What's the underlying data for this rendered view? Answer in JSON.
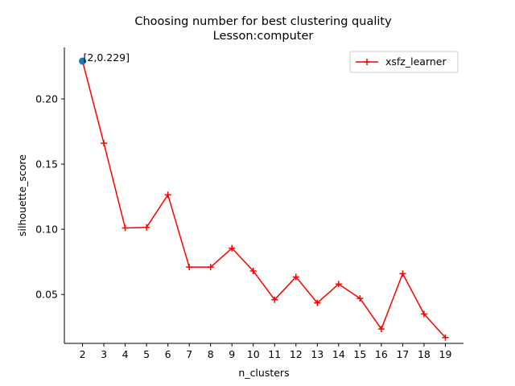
{
  "chart_data": {
    "type": "line",
    "title": "Choosing number for best clustering quality",
    "subtitle": "Lesson:computer",
    "xlabel": "n_clusters",
    "ylabel": "silhouette_score",
    "x": [
      2,
      3,
      4,
      5,
      6,
      7,
      8,
      9,
      10,
      11,
      12,
      13,
      14,
      15,
      16,
      17,
      18,
      19
    ],
    "xticks": [
      "2",
      "3",
      "4",
      "5",
      "6",
      "7",
      "8",
      "9",
      "10",
      "11",
      "12",
      "13",
      "14",
      "15",
      "16",
      "17",
      "18",
      "19"
    ],
    "yticks": [
      "0.05",
      "0.10",
      "0.15",
      "0.20"
    ],
    "ytick_values": [
      0.05,
      0.1,
      0.15,
      0.2
    ],
    "xlim": [
      1.15,
      19.85
    ],
    "ylim": [
      0.0125,
      0.2395
    ],
    "series": [
      {
        "name": "xsfz_learner",
        "color": "#ff0000",
        "marker": "plus",
        "values": [
          0.229,
          0.166,
          0.101,
          0.1015,
          0.1265,
          0.071,
          0.071,
          0.0855,
          0.068,
          0.046,
          0.0635,
          0.0435,
          0.058,
          0.047,
          0.0235,
          0.066,
          0.035,
          0.017
        ]
      }
    ],
    "highlight": {
      "x": 2,
      "y": 0.229,
      "color": "#1f77b4",
      "label": "[2,0.229]"
    },
    "legend_position": "top-right",
    "grid": false
  }
}
